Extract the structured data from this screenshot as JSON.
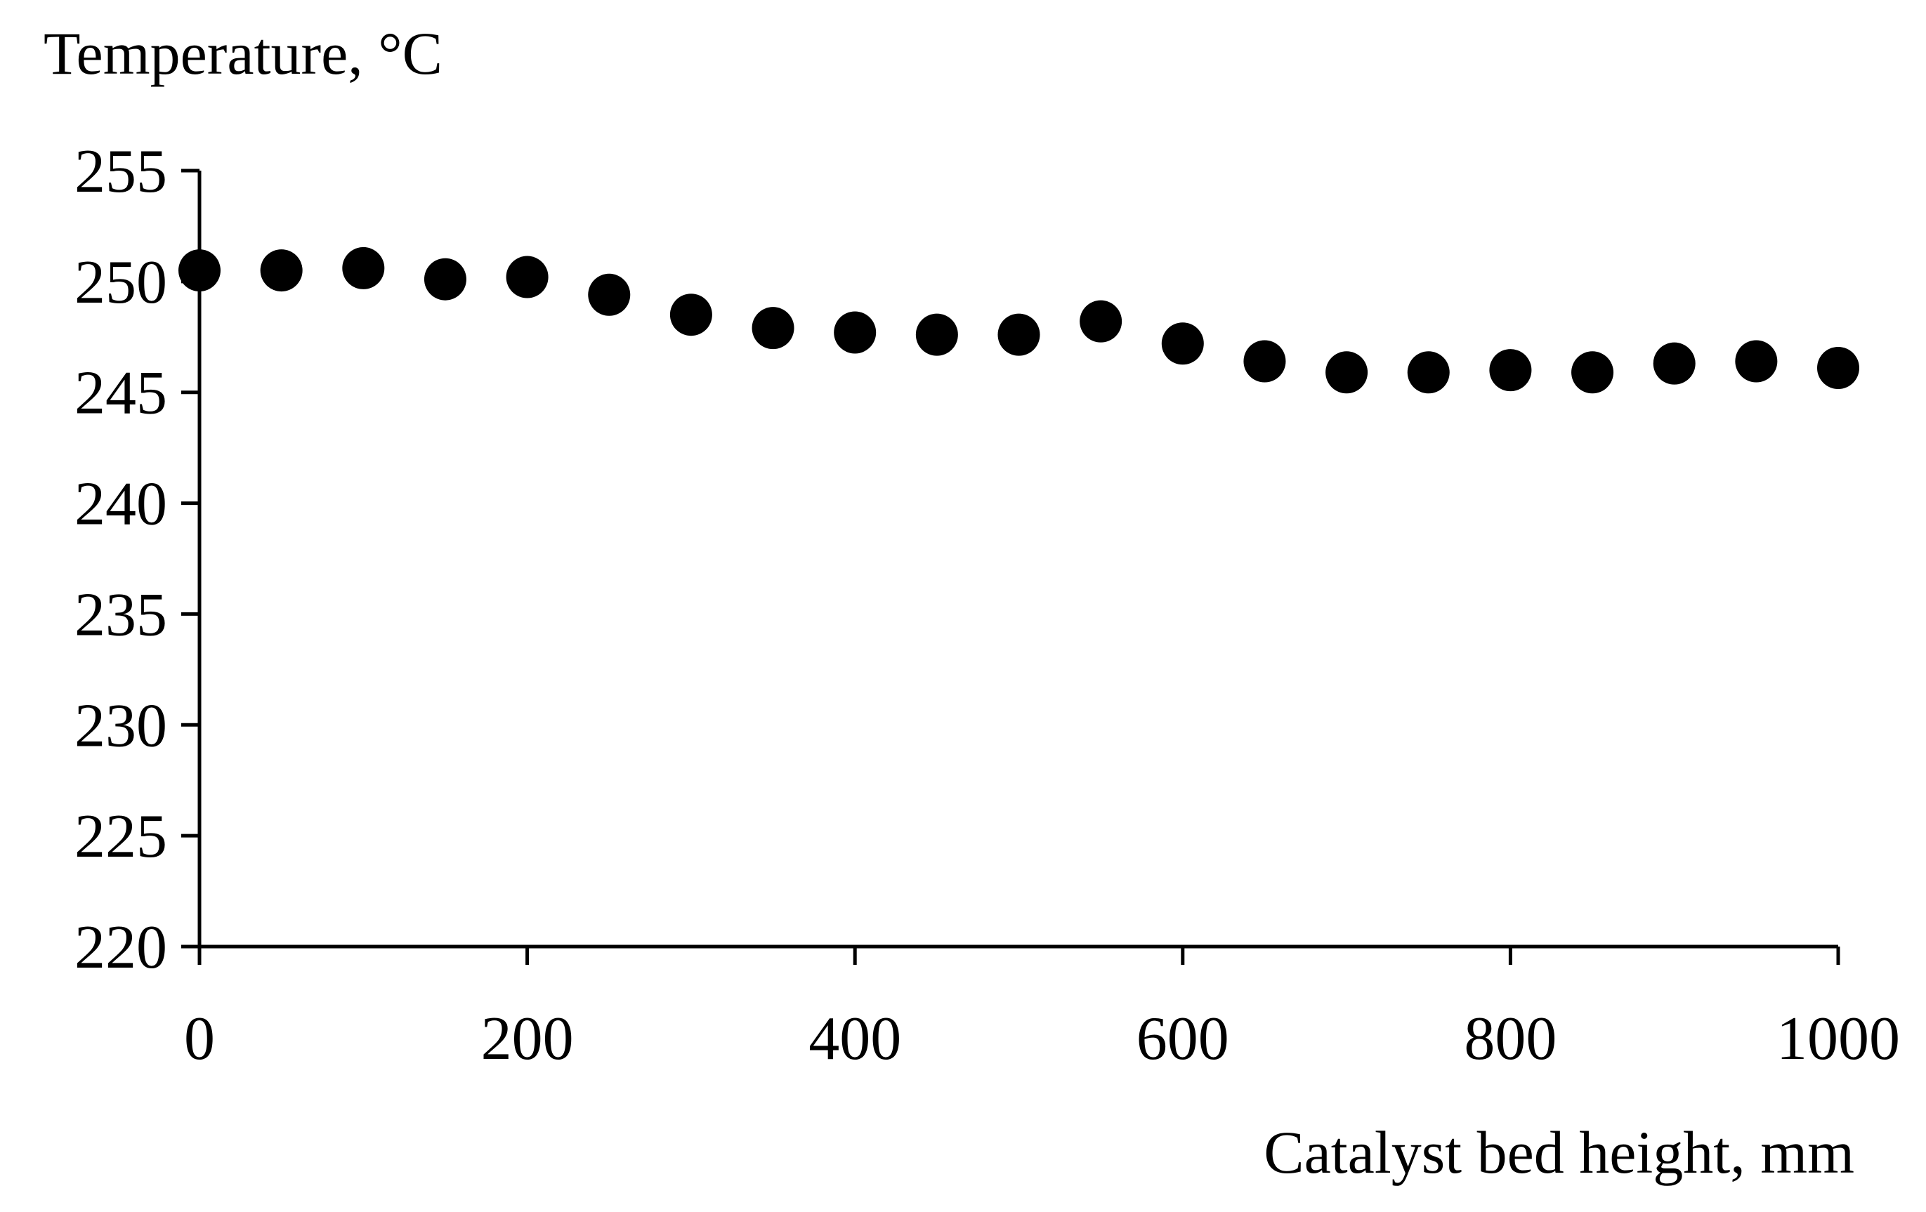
{
  "chart_data": {
    "type": "scatter",
    "title": "",
    "xlabel": "Catalyst  bed height,  mm",
    "ylabel": "Temperature,  °C",
    "xlim": [
      0,
      1000
    ],
    "ylim": [
      220,
      255
    ],
    "x_ticks": [
      0,
      200,
      400,
      600,
      800,
      1000
    ],
    "y_ticks": [
      220,
      225,
      230,
      235,
      240,
      245,
      250,
      255
    ],
    "x_tick_labels": [
      "0",
      "200",
      "400",
      "600",
      "800",
      "1000"
    ],
    "y_tick_labels": [
      "220",
      "225",
      "230",
      "235",
      "240",
      "245",
      "250",
      "255"
    ],
    "grid": false,
    "legend": "none",
    "marker_color": "#000000",
    "series": [
      {
        "x": [
          0,
          50,
          100,
          150,
          200,
          250,
          300,
          350,
          400,
          450,
          500,
          550,
          600,
          650,
          700,
          750,
          800,
          850,
          900,
          950,
          1000
        ],
        "y": [
          250.5,
          250.5,
          250.6,
          250.1,
          250.2,
          249.4,
          248.5,
          247.9,
          247.7,
          247.6,
          247.6,
          248.2,
          247.2,
          246.4,
          245.9,
          245.9,
          246.0,
          245.9,
          246.3,
          246.4,
          246.1
        ]
      }
    ]
  }
}
